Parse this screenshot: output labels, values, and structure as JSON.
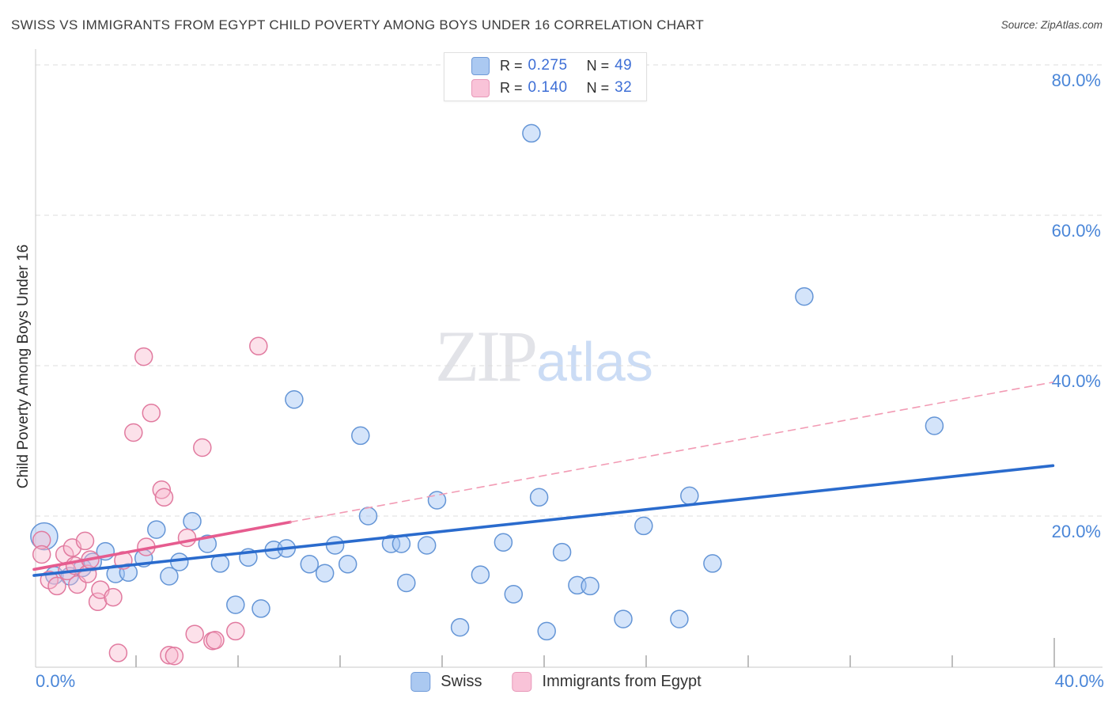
{
  "header": {
    "title": "SWISS VS IMMIGRANTS FROM EGYPT CHILD POVERTY AMONG BOYS UNDER 16 CORRELATION CHART",
    "source": "Source: ZipAtlas.com"
  },
  "stats_legend": {
    "rows": [
      {
        "r_prefix": "R =",
        "r_value": "0.275",
        "n_prefix": "N =",
        "n_value": "49",
        "swatch_fill": "#abc9f1",
        "swatch_border": "#6f9ad8"
      },
      {
        "r_prefix": "R =",
        "r_value": "0.140",
        "n_prefix": "N =",
        "n_value": "32",
        "swatch_fill": "#f9c3d8",
        "swatch_border": "#e898b8"
      }
    ]
  },
  "watermark": {
    "zip": "ZIP",
    "atlas": "atlas"
  },
  "y_axis": {
    "title": "Child Poverty Among Boys Under 16",
    "ticks": [
      {
        "label": "80.0%",
        "value": 80
      },
      {
        "label": "60.0%",
        "value": 60
      },
      {
        "label": "40.0%",
        "value": 40
      },
      {
        "label": "20.0%",
        "value": 20
      }
    ]
  },
  "x_axis": {
    "min_label": "0.0%",
    "max_label": "40.0%",
    "tick_values": [
      4,
      8,
      12,
      16,
      20,
      24,
      28,
      32,
      36,
      40
    ]
  },
  "bottom_legend": [
    {
      "label": "Swiss",
      "swatch_fill": "#abc9f1",
      "swatch_border": "#6f9ad8"
    },
    {
      "label": "Immigrants from Egypt",
      "swatch_fill": "#f9c3d8",
      "swatch_border": "#e898b8"
    }
  ],
  "colors": {
    "grid": "#dcdcdc",
    "axis": "#c9c9c9",
    "tick": "#a9a9a9",
    "axis_label_blue": "#4a86d8"
  },
  "chart_data": {
    "type": "scatter",
    "title": "Swiss vs Immigrants from Egypt Child Poverty Among Boys Under 16",
    "xlabel": "",
    "ylabel": "Child Poverty Among Boys Under 16",
    "xlim": [
      0,
      40
    ],
    "ylim": [
      0,
      82
    ],
    "x_units": "percent",
    "y_units": "percent",
    "grid": "dashed horizontal at 20/40/60/80",
    "legend_position": "bottom-center",
    "series": [
      {
        "name": "Swiss",
        "R": 0.275,
        "N": 49,
        "fill": "rgba(160,196,243,0.45)",
        "stroke": "#6495d6",
        "points": [
          [
            0.4,
            17.3,
            17
          ],
          [
            0.8,
            12.1
          ],
          [
            1.4,
            12.0
          ],
          [
            1.9,
            13.1
          ],
          [
            2.3,
            13.9
          ],
          [
            2.8,
            15.3
          ],
          [
            3.2,
            12.3
          ],
          [
            3.7,
            12.5
          ],
          [
            4.3,
            14.4
          ],
          [
            4.8,
            18.2
          ],
          [
            5.3,
            12.0
          ],
          [
            5.7,
            13.9
          ],
          [
            6.2,
            19.3
          ],
          [
            6.8,
            16.3
          ],
          [
            7.3,
            13.7
          ],
          [
            7.9,
            8.2
          ],
          [
            8.4,
            14.5
          ],
          [
            8.9,
            7.7
          ],
          [
            9.4,
            15.5
          ],
          [
            9.9,
            15.7
          ],
          [
            10.2,
            35.5
          ],
          [
            10.8,
            13.6
          ],
          [
            11.4,
            12.4
          ],
          [
            11.8,
            16.1
          ],
          [
            12.3,
            13.6
          ],
          [
            12.8,
            30.7
          ],
          [
            13.1,
            20.0
          ],
          [
            14.0,
            16.3
          ],
          [
            14.4,
            16.3
          ],
          [
            14.6,
            11.1
          ],
          [
            15.4,
            16.1
          ],
          [
            15.8,
            22.1
          ],
          [
            16.7,
            5.2
          ],
          [
            17.5,
            12.2
          ],
          [
            18.4,
            16.5
          ],
          [
            18.8,
            9.6
          ],
          [
            19.5,
            70.9
          ],
          [
            19.8,
            22.5
          ],
          [
            20.1,
            4.7
          ],
          [
            20.7,
            15.2
          ],
          [
            21.3,
            10.8
          ],
          [
            21.8,
            10.7
          ],
          [
            23.1,
            6.3
          ],
          [
            23.9,
            18.7
          ],
          [
            25.3,
            6.3
          ],
          [
            25.7,
            22.7
          ],
          [
            26.6,
            13.7
          ],
          [
            30.2,
            49.2
          ],
          [
            35.3,
            32.0
          ]
        ]
      },
      {
        "name": "Immigrants from Egypt",
        "R": 0.14,
        "N": 32,
        "fill": "rgba(247,183,206,0.42)",
        "stroke": "#e17a9f",
        "points": [
          [
            0.3,
            16.8
          ],
          [
            0.3,
            14.9
          ],
          [
            0.6,
            11.5
          ],
          [
            0.9,
            10.7
          ],
          [
            1.2,
            14.9
          ],
          [
            1.3,
            12.7
          ],
          [
            1.5,
            15.8
          ],
          [
            1.6,
            13.4
          ],
          [
            1.7,
            10.9
          ],
          [
            2.0,
            16.7
          ],
          [
            2.1,
            12.3
          ],
          [
            2.2,
            14.2
          ],
          [
            2.5,
            8.6
          ],
          [
            2.6,
            10.2
          ],
          [
            3.1,
            9.2
          ],
          [
            3.3,
            1.8
          ],
          [
            3.5,
            14.1
          ],
          [
            3.9,
            31.1
          ],
          [
            4.3,
            41.2
          ],
          [
            4.4,
            15.9
          ],
          [
            4.6,
            33.7
          ],
          [
            5.0,
            23.5
          ],
          [
            5.1,
            22.5
          ],
          [
            5.3,
            1.5
          ],
          [
            5.5,
            1.4
          ],
          [
            6.0,
            17.1
          ],
          [
            6.3,
            4.3
          ],
          [
            6.6,
            29.1
          ],
          [
            7.0,
            3.4
          ],
          [
            7.1,
            3.5
          ],
          [
            7.9,
            4.7
          ],
          [
            8.8,
            42.6
          ]
        ]
      }
    ],
    "trend_lines": [
      {
        "series": "Swiss",
        "style": "solid",
        "color": "#2a6bcd",
        "width": 3.6,
        "x1": 0,
        "y1": 12.1,
        "x2": 39.95,
        "y2": 26.7
      },
      {
        "series": "Immigrants from Egypt",
        "style": "solid",
        "color": "#e65c8f",
        "width": 3.6,
        "x1": 0,
        "y1": 12.9,
        "x2": 10.05,
        "y2": 19.2
      },
      {
        "series": "Immigrants from Egypt",
        "style": "dashed",
        "color": "#f29bb4",
        "width": 1.6,
        "x1": 10.05,
        "y1": 19.2,
        "x2": 39.95,
        "y2": 37.8
      }
    ]
  }
}
